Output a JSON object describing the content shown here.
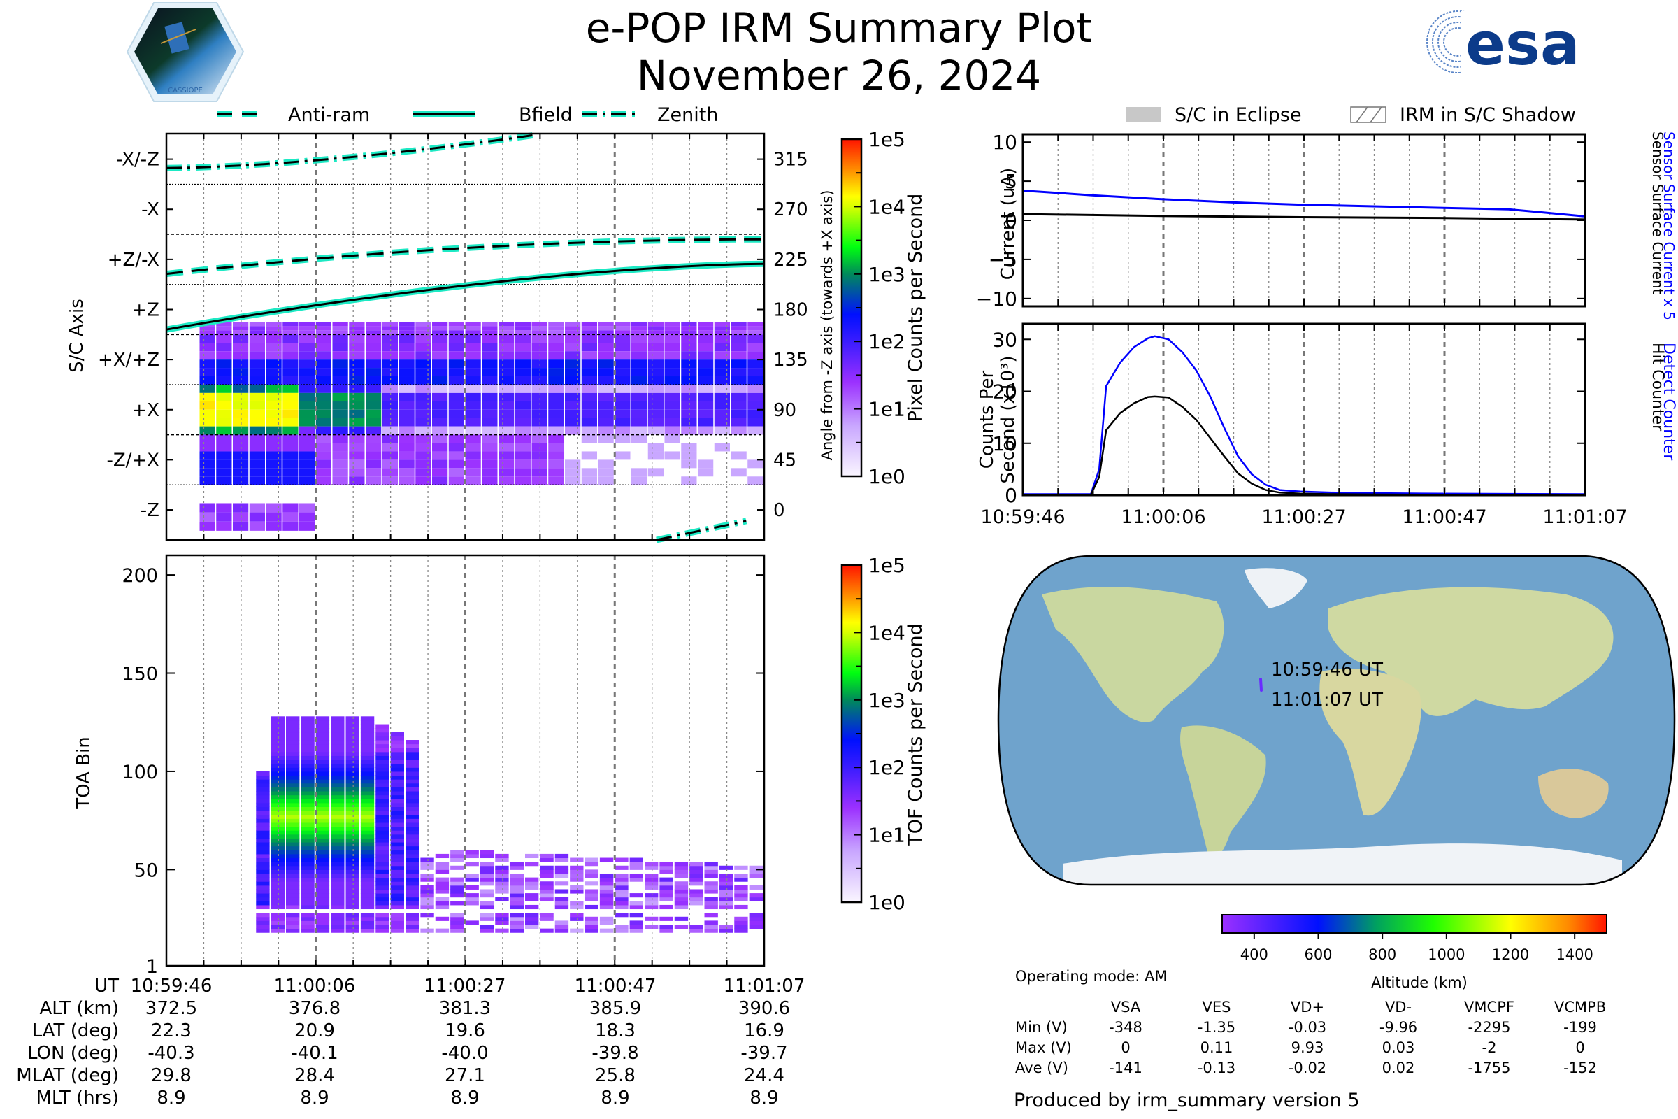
{
  "header": {
    "title": "e-POP IRM Summary Plot",
    "date": "November 26, 2024",
    "left_logo": "cassiope-mission-logo",
    "left_logo_text": "CASSIOPE",
    "right_logo_text": "esa"
  },
  "legend_left": [
    {
      "label": "Anti-ram",
      "style": "dashed"
    },
    {
      "label": "Bfield",
      "style": "solid"
    },
    {
      "label": "Zenith",
      "style": "dashdot"
    }
  ],
  "legend_right": [
    {
      "label": "S/C in Eclipse",
      "style": "gray-fill"
    },
    {
      "label": "IRM in S/C Shadow",
      "style": "hatch"
    }
  ],
  "colors": {
    "line_halo": "#1de9c4",
    "blue_series": "#0000ff",
    "black_series": "#000000"
  },
  "chart_data": [
    {
      "type": "heatmap",
      "name": "sc-axis-pixel-counts",
      "ylabel": "S/C Axis",
      "ylabel_right": "Angle from -Z axis (towards +X axis)",
      "y_categories": [
        "-X/-Z",
        "-X",
        "+Z/-X",
        "+Z",
        "+X/+Z",
        "+X",
        "-Z/+X",
        "-Z"
      ],
      "y_right_ticks": [
        315,
        270,
        225,
        180,
        135,
        90,
        45,
        0
      ],
      "xlim": [
        "10:59:46",
        "11:01:07"
      ],
      "colorbar": {
        "label": "Pixel Counts per Second",
        "scale": "log",
        "ticks": [
          "1e5",
          "1e4",
          "1e3",
          "1e2",
          "1e1",
          "1e0"
        ]
      },
      "lines": [
        {
          "name": "Anti-ram",
          "style": "dashed",
          "angle_deg_start": 212,
          "angle_deg_end": 243
        },
        {
          "name": "Bfield",
          "style": "solid",
          "angle_deg_start": 162,
          "angle_deg_end": 221
        },
        {
          "name": "Zenith",
          "style": "dashdot",
          "angle_deg_start": 307,
          "angle_deg_end": 337,
          "wraps_to": [
            -27,
            -10
          ]
        }
      ],
      "intensity_rows": [
        {
          "sector": "+Z",
          "level": "low-purple"
        },
        {
          "sector": "+X/+Z",
          "level": "blue-purple"
        },
        {
          "sector": "+X",
          "level": "yellow-orange peak early, decaying to purple"
        },
        {
          "sector": "-Z/+X",
          "level": "blue early, fading"
        },
        {
          "sector": "-Z",
          "level": "faint purple early"
        }
      ]
    },
    {
      "type": "heatmap",
      "name": "toa-bin-tof-counts",
      "ylabel": "TOA Bin",
      "yticks": [
        1,
        50,
        100,
        150,
        200
      ],
      "ylim": [
        1,
        210
      ],
      "colorbar": {
        "label": "TOF Counts per Second",
        "scale": "log",
        "ticks": [
          "1e5",
          "1e4",
          "1e3",
          "1e2",
          "1e1",
          "1e0"
        ]
      },
      "peak_band": {
        "toa_min": 58,
        "toa_max": 95,
        "peak_level": "1e3"
      }
    },
    {
      "type": "line",
      "name": "current",
      "ylabel": "Current (uA)",
      "ylim": [
        -11,
        11
      ],
      "yticks": [
        10,
        5,
        0,
        -5,
        -10
      ],
      "right_labels": [
        "Sensor Surface Current x 5",
        "Sensor Surface Current"
      ],
      "series": [
        {
          "name": "Sensor Surface Current x 5",
          "color": "#0000ff",
          "x": [
            0,
            10,
            20,
            30,
            40,
            50,
            60,
            70,
            75,
            81
          ],
          "y": [
            3.8,
            3.2,
            2.7,
            2.3,
            2.0,
            1.8,
            1.6,
            1.4,
            1.0,
            0.5
          ]
        },
        {
          "name": "Sensor Surface Current",
          "color": "#000000",
          "x": [
            0,
            20,
            40,
            60,
            70,
            81
          ],
          "y": [
            0.8,
            0.55,
            0.4,
            0.3,
            0.2,
            0.1
          ]
        }
      ]
    },
    {
      "type": "line",
      "name": "counts",
      "ylabel": "Counts Per Second (x10^3)",
      "ylim": [
        0,
        33
      ],
      "yticks": [
        0,
        10,
        20,
        30
      ],
      "xticks": [
        "10:59:46",
        "11:00:06",
        "11:00:27",
        "11:00:47",
        "11:01:07"
      ],
      "right_labels": [
        "Detect Counter",
        "Hit Counter"
      ],
      "series": [
        {
          "name": "Detect Counter",
          "color": "#0000ff",
          "x": [
            0,
            9.8,
            11,
            12,
            14,
            16,
            18,
            19,
            21,
            23,
            25,
            27,
            29,
            31,
            33,
            35,
            37,
            40,
            45,
            50,
            60,
            70,
            81
          ],
          "y": [
            0.2,
            0.2,
            5,
            21,
            25.5,
            28.5,
            30.2,
            30.6,
            30,
            27.5,
            24,
            19,
            13,
            7.5,
            4,
            2,
            1,
            0.7,
            0.5,
            0.4,
            0.3,
            0.25,
            0.2
          ]
        },
        {
          "name": "Hit Counter",
          "color": "#000000",
          "x": [
            0,
            9.8,
            11,
            12,
            14,
            16,
            18,
            19,
            21,
            23,
            25,
            27,
            29,
            31,
            33,
            35,
            37,
            40,
            45,
            50,
            60,
            70,
            81
          ],
          "y": [
            0.1,
            0.1,
            3.5,
            12.5,
            15.8,
            17.7,
            18.9,
            19,
            18.8,
            17,
            14.5,
            11,
            7.5,
            4.2,
            2.2,
            1,
            0.5,
            0.3,
            0.2,
            0.15,
            0.1,
            0.1,
            0.1
          ]
        }
      ]
    }
  ],
  "map": {
    "label_start": "10:59:46 UT",
    "label_end": "11:01:07 UT",
    "track": {
      "lat_start": 22.3,
      "lat_end": 16.9,
      "lon_start": -40.3,
      "lon_end": -39.7
    },
    "colorbar": {
      "label": "Altitude (km)",
      "ticks": [
        400,
        600,
        800,
        1000,
        1200,
        1400
      ],
      "range": [
        300,
        1500
      ]
    }
  },
  "ephemeris": {
    "row_labels": [
      "UT",
      "ALT (km)",
      "LAT (deg)",
      "LON (deg)",
      "MLAT (deg)",
      "MLT (hrs)"
    ],
    "columns": [
      [
        "10:59:46",
        "372.5",
        "22.3",
        "-40.3",
        "29.8",
        "8.9"
      ],
      [
        "11:00:06",
        "376.8",
        "20.9",
        "-40.1",
        "28.4",
        "8.9"
      ],
      [
        "11:00:27",
        "381.3",
        "19.6",
        "-40.0",
        "27.1",
        "8.9"
      ],
      [
        "11:00:47",
        "385.9",
        "18.3",
        "-39.8",
        "25.8",
        "8.9"
      ],
      [
        "11:01:07",
        "390.6",
        "16.9",
        "-39.7",
        "24.4",
        "8.9"
      ]
    ]
  },
  "voltages": {
    "operating_mode": "Operating mode: AM",
    "headers": [
      "VSA",
      "VES",
      "VD+",
      "VD-",
      "VMCPF",
      "VCMPB"
    ],
    "rows": [
      {
        "label": "Min (V)",
        "values": [
          "-348",
          "-1.35",
          "-0.03",
          "-9.96",
          "-2295",
          "-199"
        ]
      },
      {
        "label": "Max (V)",
        "values": [
          "0",
          "0.11",
          "9.93",
          "0.03",
          "-2",
          "0"
        ]
      },
      {
        "label": "Ave (V)",
        "values": [
          "-141",
          "-0.13",
          "-0.02",
          "0.02",
          "-1755",
          "-152"
        ]
      }
    ]
  },
  "footer": "Produced by irm_summary version 5"
}
